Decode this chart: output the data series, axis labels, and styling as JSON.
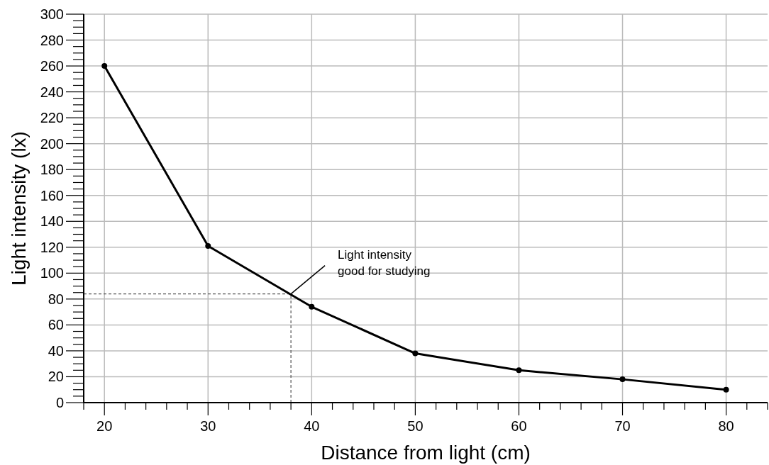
{
  "chart_data": {
    "type": "line",
    "xlabel": "Distance from light (cm)",
    "ylabel": "Light intensity (lx)",
    "x": [
      20,
      30,
      40,
      50,
      60,
      70,
      80
    ],
    "series": [
      {
        "color": "#000000",
        "values": [
          260,
          121,
          74,
          38,
          25,
          18,
          10
        ]
      }
    ],
    "xlim": [
      18,
      84
    ],
    "ylim": [
      0,
      300
    ],
    "xticks": [
      {
        "value": 18,
        "label": null
      },
      20,
      {
        "value": 22,
        "label": null
      },
      {
        "value": 24,
        "label": null
      },
      {
        "value": 26,
        "label": null
      },
      {
        "value": 28,
        "label": null
      },
      30,
      {
        "value": 32,
        "label": null
      },
      {
        "value": 34,
        "label": null
      },
      {
        "value": 36,
        "label": null
      },
      {
        "value": 38,
        "label": null
      },
      40,
      {
        "value": 42,
        "label": null
      },
      {
        "value": 44,
        "label": null
      },
      {
        "value": 46,
        "label": null
      },
      {
        "value": 48,
        "label": null
      },
      50,
      {
        "value": 52,
        "label": null
      },
      {
        "value": 54,
        "label": null
      },
      {
        "value": 56,
        "label": null
      },
      {
        "value": 58,
        "label": null
      },
      60,
      {
        "value": 62,
        "label": null
      },
      {
        "value": 64,
        "label": null
      },
      {
        "value": 66,
        "label": null
      },
      {
        "value": 68,
        "label": null
      },
      70,
      {
        "value": 72,
        "label": null
      },
      {
        "value": 74,
        "label": null
      },
      {
        "value": 76,
        "label": null
      },
      {
        "value": 78,
        "label": null
      },
      80,
      {
        "value": 82,
        "label": null
      },
      {
        "value": 84,
        "label": null
      }
    ],
    "yticks": [
      0,
      {
        "value": 5,
        "label": null
      },
      {
        "value": 10,
        "label": null
      },
      {
        "value": 15,
        "label": null
      },
      20,
      {
        "value": 25,
        "label": null
      },
      {
        "value": 30,
        "label": null
      },
      {
        "value": 35,
        "label": null
      },
      40,
      {
        "value": 45,
        "label": null
      },
      {
        "value": 50,
        "label": null
      },
      {
        "value": 55,
        "label": null
      },
      60,
      {
        "value": 65,
        "label": null
      },
      {
        "value": 70,
        "label": null
      },
      {
        "value": 75,
        "label": null
      },
      80,
      {
        "value": 85,
        "label": null
      },
      {
        "value": 90,
        "label": null
      },
      {
        "value": 95,
        "label": null
      },
      100,
      {
        "value": 105,
        "label": null
      },
      {
        "value": 110,
        "label": null
      },
      {
        "value": 115,
        "label": null
      },
      120,
      {
        "value": 125,
        "label": null
      },
      {
        "value": 130,
        "label": null
      },
      {
        "value": 135,
        "label": null
      },
      140,
      {
        "value": 145,
        "label": null
      },
      {
        "value": 150,
        "label": null
      },
      {
        "value": 155,
        "label": null
      },
      160,
      {
        "value": 165,
        "label": null
      },
      {
        "value": 170,
        "label": null
      },
      {
        "value": 175,
        "label": null
      },
      180,
      {
        "value": 185,
        "label": null
      },
      {
        "value": 190,
        "label": null
      },
      {
        "value": 195,
        "label": null
      },
      200,
      {
        "value": 205,
        "label": null
      },
      {
        "value": 210,
        "label": null
      },
      {
        "value": 215,
        "label": null
      },
      220,
      {
        "value": 225,
        "label": null
      },
      {
        "value": 230,
        "label": null
      },
      {
        "value": 235,
        "label": null
      },
      240,
      {
        "value": 245,
        "label": null
      },
      {
        "value": 250,
        "label": null
      },
      {
        "value": 255,
        "label": null
      },
      260,
      {
        "value": 265,
        "label": null
      },
      {
        "value": 270,
        "label": null
      },
      {
        "value": 275,
        "label": null
      },
      280,
      {
        "value": 285,
        "label": null
      },
      {
        "value": 290,
        "label": null
      },
      {
        "value": 295,
        "label": null
      },
      300
    ],
    "grid": true,
    "marker": "circle",
    "line_style": "solid",
    "ref_lines": [
      {
        "axis": "y",
        "value": 84,
        "line_style": "dashed",
        "color": "#555555"
      },
      {
        "axis": "x",
        "value": 38,
        "line_style": "dashed",
        "color": "#555555"
      }
    ],
    "annotations": [
      {
        "text": "Light intensity\ngood for studying",
        "x": 38,
        "y": 84
      }
    ]
  }
}
